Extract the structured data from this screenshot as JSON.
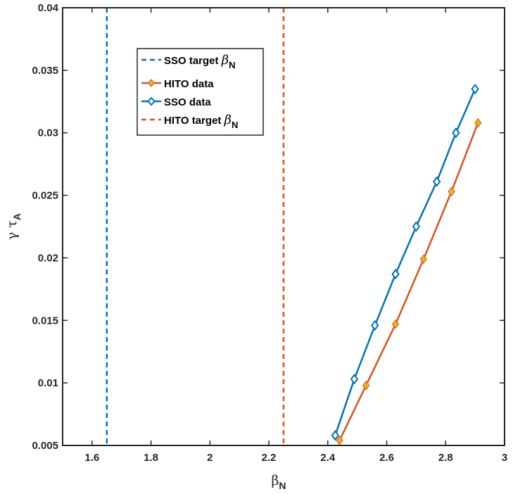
{
  "chart_data": {
    "type": "line",
    "xlabel": {
      "symbol": "β",
      "sub": "N"
    },
    "ylabel": {
      "symbol": "γ τ",
      "sub": "A"
    },
    "xlim": [
      1.5,
      3.0
    ],
    "ylim": [
      0.005,
      0.04
    ],
    "xticks": [
      "1.6",
      "1.8",
      "2",
      "2.2",
      "2.4",
      "2.6",
      "2.8",
      "3"
    ],
    "xtick_values": [
      1.6,
      1.8,
      2.0,
      2.2,
      2.4,
      2.6,
      2.8,
      3.0
    ],
    "yticks": [
      "0.005",
      "0.01",
      "0.015",
      "0.02",
      "0.025",
      "0.03",
      "0.035",
      "0.04"
    ],
    "ytick_values": [
      0.005,
      0.01,
      0.015,
      0.02,
      0.025,
      0.03,
      0.035,
      0.04
    ],
    "grid": false,
    "legend_position": "upper-left-center",
    "legend": [
      {
        "text": "SSO target ",
        "math": "β",
        "sub": "N",
        "style": "dashed",
        "color": "#0072BD"
      },
      {
        "text": "HITO data",
        "style": "solid-diamond",
        "color": "#D95319"
      },
      {
        "text": "SSO data",
        "style": "solid-diamond",
        "color": "#0072BD"
      },
      {
        "text": "HITO target ",
        "math": "β",
        "sub": "N",
        "style": "dashed",
        "color": "#D95319"
      }
    ],
    "vertical_lines": [
      {
        "name": "SSO target",
        "x": 1.65,
        "color": "#0072BD"
      },
      {
        "name": "HITO target",
        "x": 2.25,
        "color": "#D95319"
      }
    ],
    "series": [
      {
        "name": "HITO data",
        "color": "#D95319",
        "marker_color": "#EDB120",
        "x": [
          2.44,
          2.53,
          2.63,
          2.725,
          2.82,
          2.91
        ],
        "y": [
          0.0054,
          0.0098,
          0.0147,
          0.0199,
          0.0253,
          0.0308
        ]
      },
      {
        "name": "SSO data",
        "color": "#0072BD",
        "marker_color": "#0072BD",
        "x": [
          2.425,
          2.49,
          2.56,
          2.63,
          2.7,
          2.77,
          2.835,
          2.9
        ],
        "y": [
          0.0058,
          0.0103,
          0.0146,
          0.0187,
          0.0225,
          0.0261,
          0.03,
          0.0335
        ]
      }
    ]
  }
}
